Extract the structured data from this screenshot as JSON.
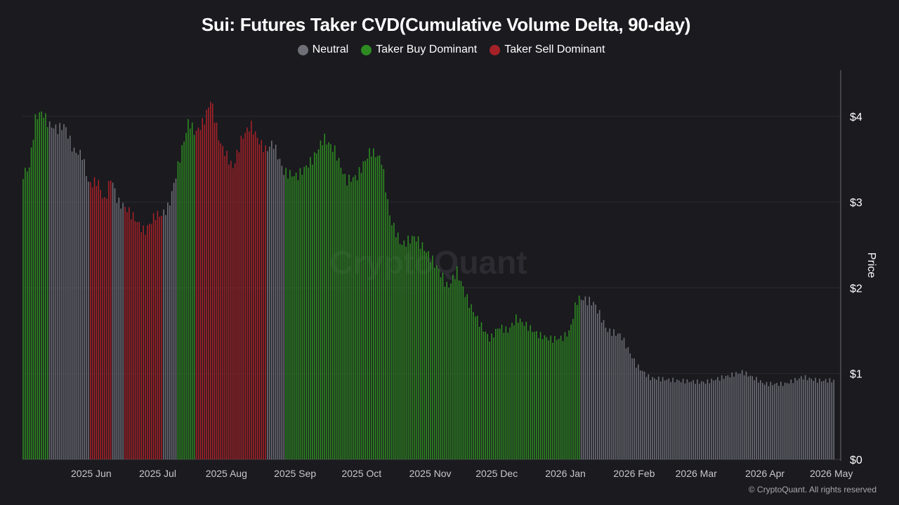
{
  "chart_data": {
    "type": "bar",
    "title": "Sui: Futures Taker CVD(Cumulative Volume Delta, 90-day)",
    "ylabel": "Price",
    "xlabel": "",
    "ylim": [
      0,
      4.5
    ],
    "grid": true,
    "legend_placement": "top-center",
    "legend": [
      {
        "name": "Neutral",
        "color": "#6f6f78"
      },
      {
        "name": "Taker Buy Dominant",
        "color": "#2e8b22"
      },
      {
        "name": "Taker Sell Dominant",
        "color": "#a52228"
      }
    ],
    "x_range": [
      "2025-05-01",
      "2026-05-03"
    ],
    "x_ticks": [
      "2025 Jun",
      "2025 Jul",
      "2025 Aug",
      "2025 Sep",
      "2025 Oct",
      "2025 Nov",
      "2025 Dec",
      "2026 Jan",
      "2026 Feb",
      "2026 Mar",
      "2026 Apr",
      "2026 May"
    ],
    "y_ticks": [
      "$0",
      "$1",
      "$2",
      "$3",
      "$4"
    ],
    "keypoints": [
      [
        "2025-05-01",
        3.32,
        "buy"
      ],
      [
        "2025-05-04",
        3.4,
        "buy"
      ],
      [
        "2025-05-07",
        4.0,
        "buy"
      ],
      [
        "2025-05-10",
        4.05,
        "buy"
      ],
      [
        "2025-05-13",
        3.9,
        "neutral"
      ],
      [
        "2025-05-17",
        3.85,
        "neutral"
      ],
      [
        "2025-05-20",
        3.9,
        "neutral"
      ],
      [
        "2025-05-24",
        3.6,
        "neutral"
      ],
      [
        "2025-05-28",
        3.55,
        "neutral"
      ],
      [
        "2025-05-31",
        3.2,
        "sell"
      ],
      [
        "2025-06-04",
        3.25,
        "sell"
      ],
      [
        "2025-06-07",
        3.0,
        "sell"
      ],
      [
        "2025-06-10",
        3.3,
        "neutral"
      ],
      [
        "2025-06-13",
        3.0,
        "neutral"
      ],
      [
        "2025-06-16",
        2.95,
        "sell"
      ],
      [
        "2025-06-21",
        2.8,
        "sell"
      ],
      [
        "2025-06-25",
        2.65,
        "sell"
      ],
      [
        "2025-06-30",
        2.85,
        "sell"
      ],
      [
        "2025-07-03",
        2.85,
        "neutral"
      ],
      [
        "2025-07-06",
        2.95,
        "neutral"
      ],
      [
        "2025-07-10",
        3.4,
        "buy"
      ],
      [
        "2025-07-15",
        3.95,
        "buy"
      ],
      [
        "2025-07-18",
        3.8,
        "sell"
      ],
      [
        "2025-07-22",
        3.95,
        "sell"
      ],
      [
        "2025-07-25",
        4.2,
        "sell"
      ],
      [
        "2025-07-29",
        3.7,
        "sell"
      ],
      [
        "2025-08-04",
        3.4,
        "sell"
      ],
      [
        "2025-08-08",
        3.75,
        "sell"
      ],
      [
        "2025-08-12",
        3.9,
        "sell"
      ],
      [
        "2025-08-16",
        3.7,
        "sell"
      ],
      [
        "2025-08-19",
        3.6,
        "neutral"
      ],
      [
        "2025-08-22",
        3.7,
        "neutral"
      ],
      [
        "2025-08-27",
        3.35,
        "buy"
      ],
      [
        "2025-09-02",
        3.3,
        "buy"
      ],
      [
        "2025-09-09",
        3.5,
        "buy"
      ],
      [
        "2025-09-14",
        3.75,
        "buy"
      ],
      [
        "2025-09-19",
        3.6,
        "buy"
      ],
      [
        "2025-09-24",
        3.25,
        "buy"
      ],
      [
        "2025-09-29",
        3.3,
        "buy"
      ],
      [
        "2025-10-05",
        3.6,
        "buy"
      ],
      [
        "2025-10-10",
        3.5,
        "buy"
      ],
      [
        "2025-10-14",
        2.8,
        "buy"
      ],
      [
        "2025-10-19",
        2.5,
        "buy"
      ],
      [
        "2025-10-25",
        2.6,
        "buy"
      ],
      [
        "2025-10-31",
        2.4,
        "buy"
      ],
      [
        "2025-11-05",
        2.2,
        "buy"
      ],
      [
        "2025-11-09",
        2.0,
        "buy"
      ],
      [
        "2025-11-13",
        2.2,
        "buy"
      ],
      [
        "2025-11-18",
        1.85,
        "buy"
      ],
      [
        "2025-11-23",
        1.6,
        "buy"
      ],
      [
        "2025-11-28",
        1.4,
        "buy"
      ],
      [
        "2025-12-02",
        1.55,
        "buy"
      ],
      [
        "2025-12-06",
        1.5,
        "buy"
      ],
      [
        "2025-12-10",
        1.65,
        "buy"
      ],
      [
        "2025-12-15",
        1.55,
        "buy"
      ],
      [
        "2025-12-20",
        1.45,
        "buy"
      ],
      [
        "2025-12-26",
        1.4,
        "buy"
      ],
      [
        "2025-12-31",
        1.42,
        "buy"
      ],
      [
        "2026-01-03",
        1.5,
        "buy"
      ],
      [
        "2026-01-06",
        1.85,
        "buy"
      ],
      [
        "2026-01-08",
        1.88,
        "neutral"
      ],
      [
        "2026-01-14",
        1.82,
        "neutral"
      ],
      [
        "2026-01-20",
        1.5,
        "neutral"
      ],
      [
        "2026-01-26",
        1.45,
        "neutral"
      ],
      [
        "2026-02-02",
        1.1,
        "neutral"
      ],
      [
        "2026-02-08",
        0.95,
        "neutral"
      ],
      [
        "2026-02-20",
        0.92,
        "neutral"
      ],
      [
        "2026-03-05",
        0.9,
        "neutral"
      ],
      [
        "2026-03-15",
        0.97,
        "neutral"
      ],
      [
        "2026-03-22",
        1.02,
        "neutral"
      ],
      [
        "2026-04-01",
        0.88,
        "neutral"
      ],
      [
        "2026-04-10",
        0.88,
        "neutral"
      ],
      [
        "2026-04-18",
        0.96,
        "neutral"
      ],
      [
        "2026-04-25",
        0.92,
        "neutral"
      ],
      [
        "2026-05-03",
        0.92,
        "neutral"
      ]
    ]
  },
  "watermark": "CryptoQuant",
  "copyright": "© CryptoQuant. All rights reserved"
}
